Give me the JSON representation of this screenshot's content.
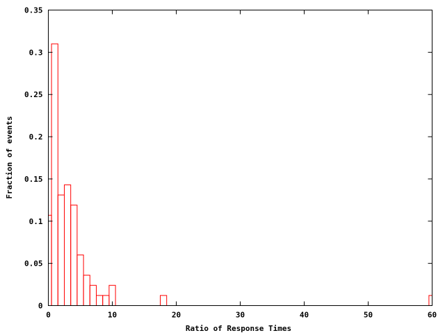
{
  "chart_data": {
    "type": "bar",
    "style": "histogram-outline",
    "xlabel": "Ratio of Response Times",
    "ylabel": "Fraction of events",
    "xlim": [
      0,
      60
    ],
    "ylim": [
      0,
      0.35
    ],
    "xticks": [
      "0",
      "10",
      "20",
      "30",
      "40",
      "50",
      "60"
    ],
    "yticks": [
      "0",
      "0.05",
      "0.1",
      "0.15",
      "0.2",
      "0.25",
      "0.3",
      "0.35"
    ],
    "grid": false,
    "bar_color": "#ff0000",
    "bin_width": 1,
    "x": [
      0,
      1,
      2,
      3,
      4,
      5,
      6,
      7,
      8,
      9,
      10,
      18,
      60
    ],
    "values": [
      0.107,
      0.31,
      0.131,
      0.143,
      0.119,
      0.06,
      0.036,
      0.024,
      0.012,
      0.012,
      0.024,
      0.012,
      0.012
    ]
  }
}
